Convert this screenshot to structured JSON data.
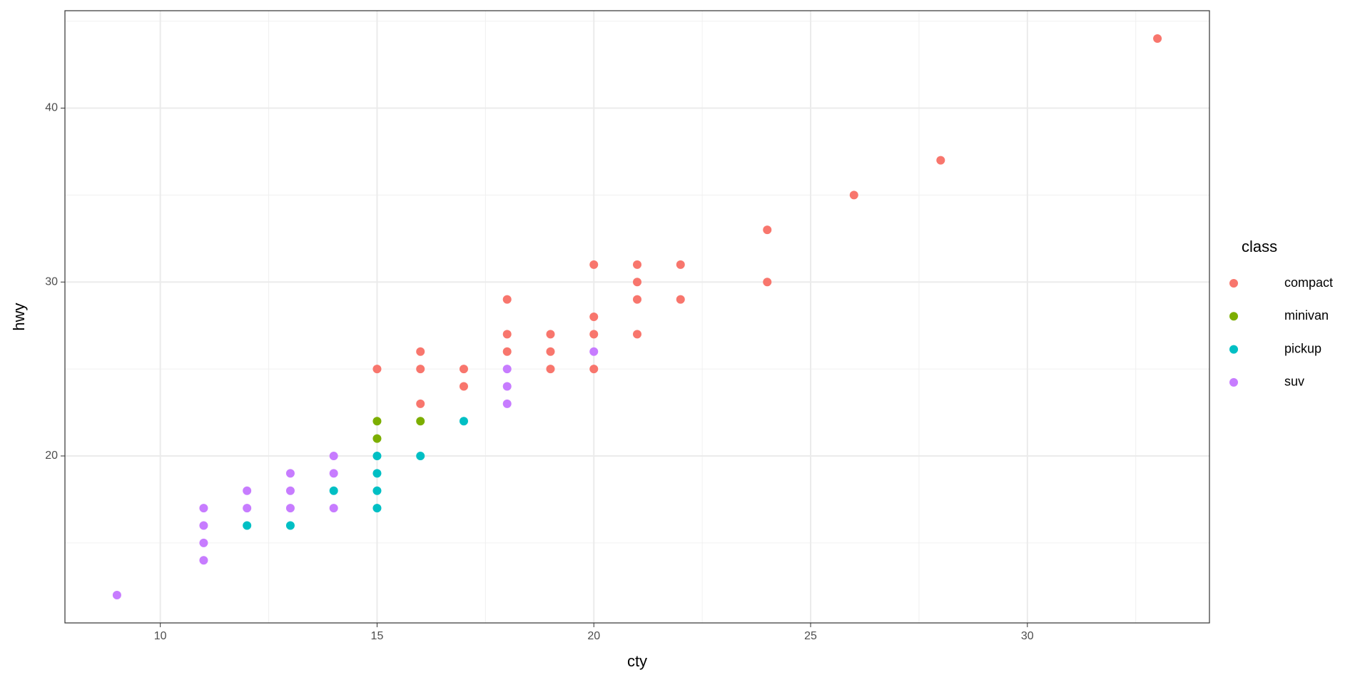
{
  "chart_data": {
    "type": "scatter",
    "x_label": "cty",
    "y_label": "hwy",
    "legend_title": "class",
    "xlim": [
      7.8,
      34.2
    ],
    "ylim": [
      10.4,
      45.6
    ],
    "xticks": [
      10,
      15,
      20,
      25,
      30
    ],
    "yticks": [
      20,
      30,
      40
    ],
    "xminor": [
      12.5,
      17.5,
      22.5,
      27.5,
      32.5
    ],
    "yminor": [
      15,
      25,
      35,
      45
    ],
    "grid": true,
    "legend": "right",
    "series": [
      {
        "name": "compact",
        "color": "#F8766D",
        "x": [
          15,
          16,
          16,
          16,
          17,
          17,
          18,
          18,
          18,
          19,
          19,
          19,
          20,
          20,
          20,
          20,
          21,
          21,
          21,
          21,
          22,
          22,
          24,
          24,
          26,
          28,
          33
        ],
        "y": [
          25,
          26,
          25,
          23,
          25,
          24,
          29,
          27,
          26,
          27,
          26,
          25,
          31,
          28,
          27,
          25,
          31,
          30,
          29,
          27,
          31,
          29,
          33,
          30,
          35,
          37,
          44
        ]
      },
      {
        "name": "minivan",
        "color": "#7CAE00",
        "x": [
          15,
          15,
          16
        ],
        "y": [
          22,
          21,
          22
        ]
      },
      {
        "name": "pickup",
        "color": "#00BFC4",
        "x": [
          15,
          15,
          15,
          15,
          16,
          17,
          12,
          13,
          14
        ],
        "y": [
          20,
          19,
          18,
          17,
          20,
          22,
          16,
          16,
          18
        ]
      },
      {
        "name": "suv",
        "color": "#C77CFF",
        "x": [
          9,
          11,
          11,
          11,
          11,
          12,
          12,
          13,
          13,
          13,
          14,
          14,
          14,
          18,
          18,
          18,
          20
        ],
        "y": [
          12,
          17,
          16,
          15,
          14,
          18,
          17,
          19,
          18,
          17,
          20,
          19,
          17,
          25,
          24,
          23,
          26
        ]
      }
    ]
  }
}
